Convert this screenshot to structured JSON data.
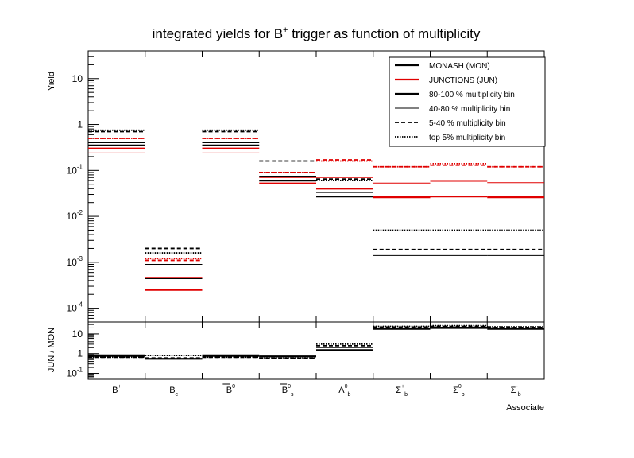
{
  "title": {
    "main": "integrated yields for B",
    "sup": "+",
    "rest": " trigger as function of multiplicity"
  },
  "colors": {
    "mon": "#000000",
    "jun": "#e00000"
  },
  "chart_data": [
    {
      "type": "step",
      "name": "yields",
      "ylabel": "Yield",
      "yscale": "log",
      "ylim": [
        5e-05,
        40
      ],
      "y_ticks": [
        {
          "base": "10",
          "exp": "-4",
          "value": 0.0001
        },
        {
          "base": "10",
          "exp": "-3",
          "value": 0.001
        },
        {
          "base": "10",
          "exp": "-2",
          "value": 0.01
        },
        {
          "base": "10",
          "exp": "-1",
          "value": 0.1
        },
        {
          "base": "1",
          "exp": "",
          "value": 1
        },
        {
          "base": "10",
          "exp": "",
          "value": 10
        }
      ],
      "categories": [
        "B",
        "Bc",
        "B0bar",
        "Bs0bar",
        "Lambda_b0",
        "Sigma_b+",
        "Sigma_b0",
        "Sigma_b-"
      ],
      "legend": {
        "position": "top-right",
        "entries": [
          {
            "label": "MONASH (MON)",
            "color": "#000000",
            "style": "thick"
          },
          {
            "label": "JUNCTIONS (JUN)",
            "color": "#e00000",
            "style": "thick"
          },
          {
            "label": "80-100 % multiplicity bin",
            "color": "#000000",
            "style": "thick"
          },
          {
            "label": "40-80 % multiplicity bin",
            "color": "#000000",
            "style": "thin"
          },
          {
            "label": "5-40 % multiplicity bin",
            "color": "#000000",
            "style": "dashed"
          },
          {
            "label": "top 5% multiplicity bin",
            "color": "#000000",
            "style": "dotted"
          }
        ]
      },
      "series": [
        {
          "model": "MON",
          "bin": "80-100 %",
          "values": [
            0.35,
            0.00045,
            0.35,
            0.06,
            0.027,
            null,
            null,
            null
          ]
        },
        {
          "model": "MON",
          "bin": "40-80 %",
          "values": [
            0.4,
            0.0009,
            0.4,
            0.075,
            0.033,
            0.0014,
            0.0014,
            0.0014
          ]
        },
        {
          "model": "MON",
          "bin": "5-40 %",
          "values": [
            0.7,
            0.002,
            0.7,
            0.16,
            0.065,
            0.0019,
            0.0019,
            0.0019
          ]
        },
        {
          "model": "MON",
          "bin": "top 5%",
          "values": [
            0.75,
            0.0016,
            0.75,
            0.09,
            0.06,
            0.005,
            0.005,
            0.005
          ]
        },
        {
          "model": "JUN",
          "bin": "80-100 %",
          "values": [
            0.3,
            0.00025,
            0.3,
            0.052,
            0.04,
            0.026,
            0.027,
            0.026
          ]
        },
        {
          "model": "JUN",
          "bin": "40-80 %",
          "values": [
            0.24,
            0.00047,
            0.24,
            0.07,
            0.07,
            0.053,
            0.058,
            0.054
          ]
        },
        {
          "model": "JUN",
          "bin": "5-40 %",
          "values": [
            0.5,
            0.0011,
            0.5,
            0.09,
            0.17,
            0.12,
            0.13,
            0.12
          ]
        },
        {
          "model": "JUN",
          "bin": "top 5%",
          "values": [
            0.5,
            0.0012,
            0.5,
            0.09,
            0.16,
            0.12,
            0.14,
            0.12
          ]
        }
      ]
    },
    {
      "type": "step",
      "name": "ratio",
      "ylabel": "JUN / MON",
      "xlabel": "Associate",
      "yscale": "log",
      "ylim": [
        0.05,
        40
      ],
      "y_ticks": [
        {
          "base": "10",
          "exp": "-1",
          "value": 0.1
        },
        {
          "base": "1",
          "exp": "",
          "value": 1
        },
        {
          "base": "10",
          "exp": "",
          "value": 10
        }
      ],
      "x_ticks": [
        {
          "base": "B",
          "sup": "+",
          "sub": ""
        },
        {
          "base": "B",
          "sup": "",
          "sub": "c"
        },
        {
          "base": "B",
          "sup": "0",
          "sub": "",
          "bar": true
        },
        {
          "base": "B",
          "sup": "0",
          "sub": "s",
          "bar": true
        },
        {
          "base": "Λ",
          "sup": "0",
          "sub": "b"
        },
        {
          "base": "Σ",
          "sup": "+",
          "sub": "b"
        },
        {
          "base": "Σ",
          "sup": "0",
          "sub": "b"
        },
        {
          "base": "Σ",
          "sup": "-",
          "sub": "b"
        }
      ],
      "series": [
        {
          "bin": "80-100 %",
          "values": [
            0.82,
            0.55,
            0.82,
            0.72,
            1.5,
            18,
            20,
            18
          ]
        },
        {
          "bin": "40-80 %",
          "values": [
            0.72,
            0.52,
            0.72,
            0.7,
            2.0,
            20,
            22,
            19
          ]
        },
        {
          "bin": "5-40 %",
          "values": [
            0.65,
            0.6,
            0.65,
            0.58,
            2.5,
            22,
            24,
            21
          ]
        },
        {
          "bin": "top 5%",
          "values": [
            0.66,
            0.8,
            0.66,
            0.6,
            3.0,
            24,
            26,
            23
          ]
        }
      ]
    }
  ]
}
